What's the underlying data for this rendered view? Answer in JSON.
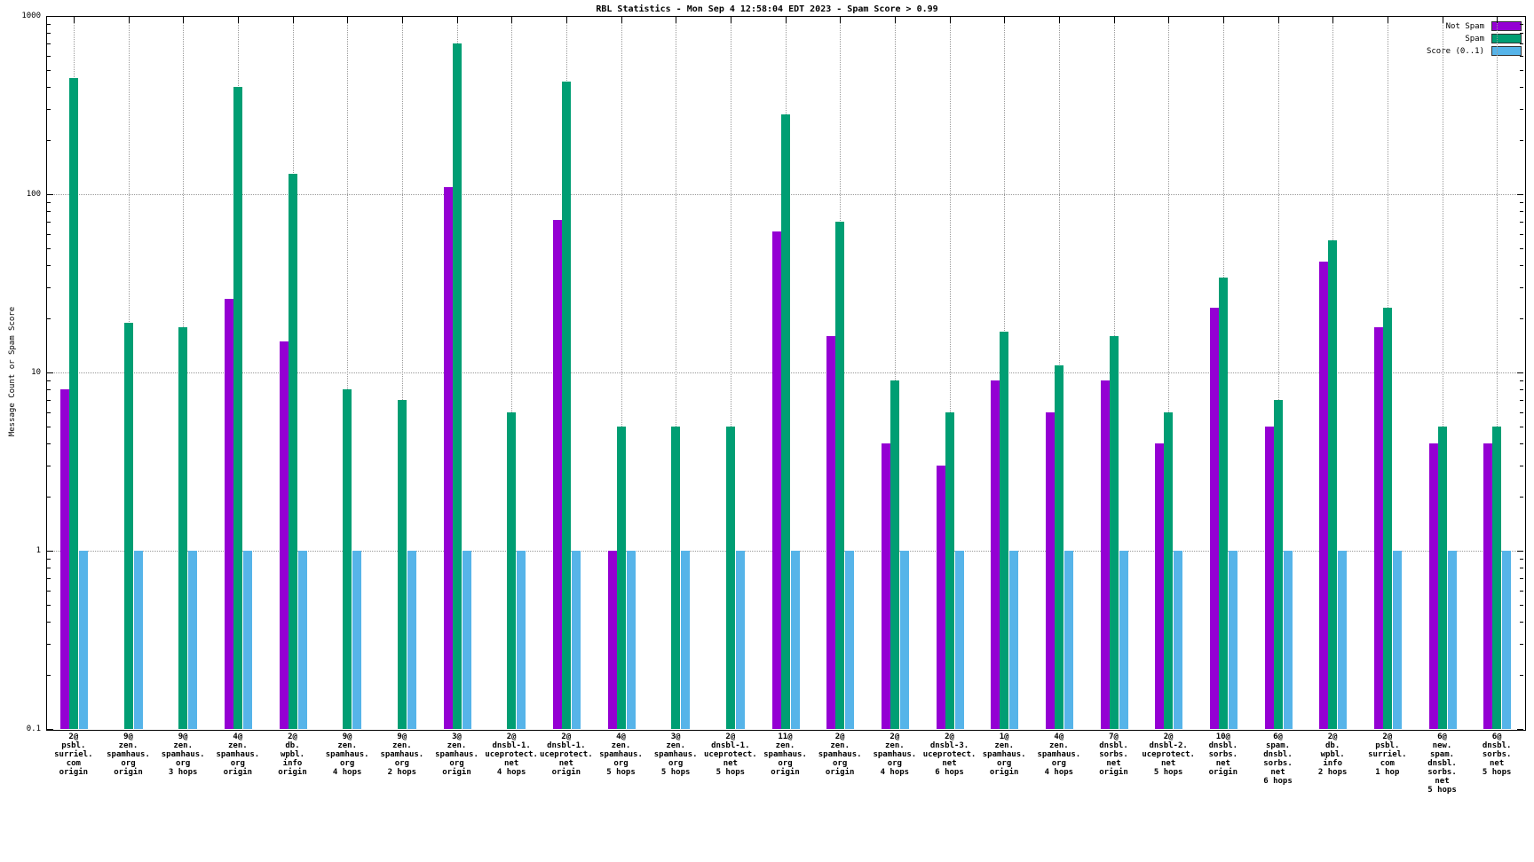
{
  "title": "RBL Statistics - Mon Sep  4 12:58:04 EDT 2023 - Spam Score > 0.99",
  "ylabel": "Message Count or Spam Score",
  "chart_data": {
    "type": "bar",
    "title": "RBL Statistics - Mon Sep  4 12:58:04 EDT 2023 - Spam Score > 0.99",
    "ylabel": "Message Count or Spam Score",
    "xlabel": "",
    "yscale": "log",
    "ylim": [
      0.1,
      1000
    ],
    "yticks": [
      0.1,
      1,
      10,
      100,
      1000
    ],
    "ytick_labels": [
      "0.1",
      "1",
      "10",
      "100",
      "1000"
    ],
    "grid": true,
    "legend_position": "top-right-inside",
    "categories": [
      {
        "label_lines": [
          "2@",
          "psbl.",
          "surriel.",
          "com",
          "origin"
        ]
      },
      {
        "label_lines": [
          "9@",
          "zen.",
          "spamhaus.",
          "org",
          "origin"
        ]
      },
      {
        "label_lines": [
          "9@",
          "zen.",
          "spamhaus.",
          "org",
          "3 hops"
        ]
      },
      {
        "label_lines": [
          "4@",
          "zen.",
          "spamhaus.",
          "org",
          "origin"
        ]
      },
      {
        "label_lines": [
          "2@",
          "db.",
          "wpbl.",
          "info",
          "origin"
        ]
      },
      {
        "label_lines": [
          "9@",
          "zen.",
          "spamhaus.",
          "org",
          "4 hops"
        ]
      },
      {
        "label_lines": [
          "9@",
          "zen.",
          "spamhaus.",
          "org",
          "2 hops"
        ]
      },
      {
        "label_lines": [
          "3@",
          "zen.",
          "spamhaus.",
          "org",
          "origin"
        ]
      },
      {
        "label_lines": [
          "2@",
          "dnsbl-1.",
          "uceprotect.",
          "net",
          "4 hops"
        ]
      },
      {
        "label_lines": [
          "2@",
          "dnsbl-1.",
          "uceprotect.",
          "net",
          "origin"
        ]
      },
      {
        "label_lines": [
          "4@",
          "zen.",
          "spamhaus.",
          "org",
          "5 hops"
        ]
      },
      {
        "label_lines": [
          "3@",
          "zen.",
          "spamhaus.",
          "org",
          "5 hops"
        ]
      },
      {
        "label_lines": [
          "2@",
          "dnsbl-1.",
          "uceprotect.",
          "net",
          "5 hops"
        ]
      },
      {
        "label_lines": [
          "11@",
          "zen.",
          "spamhaus.",
          "org",
          "origin"
        ]
      },
      {
        "label_lines": [
          "2@",
          "zen.",
          "spamhaus.",
          "org",
          "origin"
        ]
      },
      {
        "label_lines": [
          "2@",
          "zen.",
          "spamhaus.",
          "org",
          "4 hops"
        ]
      },
      {
        "label_lines": [
          "2@",
          "dnsbl-3.",
          "uceprotect.",
          "net",
          "6 hops"
        ]
      },
      {
        "label_lines": [
          "1@",
          "zen.",
          "spamhaus.",
          "org",
          "origin"
        ]
      },
      {
        "label_lines": [
          "4@",
          "zen.",
          "spamhaus.",
          "org",
          "4 hops"
        ]
      },
      {
        "label_lines": [
          "7@",
          "dnsbl.",
          "sorbs.",
          "net",
          "origin"
        ]
      },
      {
        "label_lines": [
          "2@",
          "dnsbl-2.",
          "uceprotect.",
          "net",
          "5 hops"
        ]
      },
      {
        "label_lines": [
          "10@",
          "dnsbl.",
          "sorbs.",
          "net",
          "origin"
        ]
      },
      {
        "label_lines": [
          "6@",
          "spam.",
          "dnsbl.",
          "sorbs.",
          "net",
          "6 hops"
        ]
      },
      {
        "label_lines": [
          "2@",
          "db.",
          "wpbl.",
          "info",
          "2 hops"
        ]
      },
      {
        "label_lines": [
          "2@",
          "psbl.",
          "surriel.",
          "com",
          "1 hop"
        ]
      },
      {
        "label_lines": [
          "6@",
          "new.",
          "spam.",
          "dnsbl.",
          "sorbs.",
          "net",
          "5 hops"
        ]
      },
      {
        "label_lines": [
          "6@",
          "dnsbl.",
          "sorbs.",
          "net",
          "5 hops"
        ]
      }
    ],
    "series": [
      {
        "name": "Not Spam",
        "color": "#9400D3",
        "values": [
          8,
          null,
          null,
          26,
          15,
          null,
          null,
          110,
          null,
          72,
          1,
          null,
          null,
          62,
          16,
          4,
          3,
          9,
          6,
          9,
          4,
          23,
          5,
          42,
          18,
          4,
          4
        ]
      },
      {
        "name": "Spam",
        "color": "#009E73",
        "values": [
          450,
          19,
          18,
          400,
          130,
          8,
          7,
          700,
          6,
          430,
          5,
          5,
          5,
          280,
          70,
          9,
          6,
          17,
          11,
          16,
          6,
          34,
          7,
          55,
          23,
          5,
          5
        ]
      },
      {
        "name": "Score (0..1)",
        "color": "#56B4E9",
        "values": [
          1,
          1,
          1,
          1,
          1,
          1,
          1,
          1,
          1,
          1,
          1,
          1,
          1,
          1,
          1,
          1,
          1,
          1,
          1,
          1,
          1,
          1,
          1,
          1,
          1,
          1,
          1
        ]
      }
    ]
  }
}
